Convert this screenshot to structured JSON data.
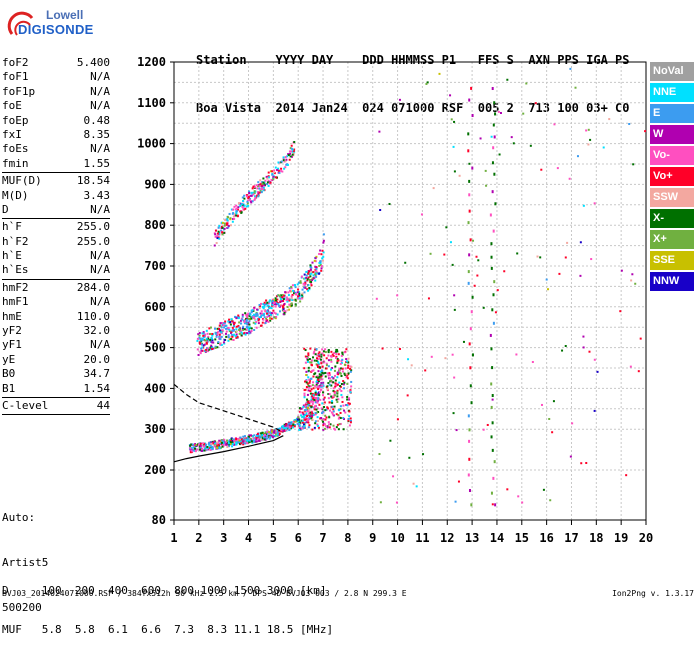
{
  "logo": {
    "line1": "Lowell",
    "line2": "DIGISONDE"
  },
  "header": {
    "row1": "Station    YYYY DAY    DDD HHMMSS P1   FFS S  AXN PPS IGA PS",
    "row2": "Boa Vista  2014 Jan24  024 071000 RSF  005 2  713 100 03+ C0"
  },
  "params_groups": [
    [
      {
        "k": "foF2",
        "v": "5.400"
      },
      {
        "k": "foF1",
        "v": "N/A"
      },
      {
        "k": "foF1p",
        "v": "N/A"
      },
      {
        "k": "foE",
        "v": "N/A"
      },
      {
        "k": "foEp",
        "v": "0.48"
      },
      {
        "k": "fxI",
        "v": "8.35"
      },
      {
        "k": "foEs",
        "v": "N/A"
      },
      {
        "k": "fmin",
        "v": "1.55"
      }
    ],
    [
      {
        "k": "MUF(D)",
        "v": "18.54"
      },
      {
        "k": "M(D)",
        "v": "3.43"
      },
      {
        "k": "D",
        "v": "N/A"
      }
    ],
    [
      {
        "k": "h`F",
        "v": "255.0"
      },
      {
        "k": "h`F2",
        "v": "255.0"
      },
      {
        "k": "h`E",
        "v": "N/A"
      },
      {
        "k": "h`Es",
        "v": "N/A"
      }
    ],
    [
      {
        "k": "hmF2",
        "v": "284.0"
      },
      {
        "k": "hmF1",
        "v": "N/A"
      },
      {
        "k": "hmE",
        "v": "110.0"
      },
      {
        "k": "yF2",
        "v": "32.0"
      },
      {
        "k": "yF1",
        "v": "N/A"
      },
      {
        "k": "yE",
        "v": "20.0"
      },
      {
        "k": "B0",
        "v": "34.7"
      },
      {
        "k": "B1",
        "v": "1.54"
      }
    ],
    [
      {
        "k": "C-level",
        "v": "44"
      }
    ]
  ],
  "auto_block": [
    "Auto:",
    "Artist5",
    "500200"
  ],
  "bottom_table": {
    "row1": "D     100  200  400  600  800 1000 1500 3000 [km]",
    "row2": "MUF   5.8  5.8  6.1  6.6  7.3  8.3 11.1 18.5 [MHz]"
  },
  "footer": {
    "left": "BVJ03_2014024071000.RSF / 384fx512h 50 kHz 2.5 km / DPS-4D BVJ03 003 / 2.8 N 299.3 E",
    "right": "Ion2Png v. 1.3.17"
  },
  "legend": [
    {
      "label": "NoVal",
      "color": "#a0a0a0"
    },
    {
      "label": "NNE",
      "color": "#00e0ff"
    },
    {
      "label": "E",
      "color": "#3c9cf0"
    },
    {
      "label": "W",
      "color": "#b000b0"
    },
    {
      "label": "Vo-",
      "color": "#ff4fc0"
    },
    {
      "label": "Vo+",
      "color": "#ff0028"
    },
    {
      "label": "SSW",
      "color": "#f3a8a0"
    },
    {
      "label": "X-",
      "color": "#007000"
    },
    {
      "label": "X+",
      "color": "#70b040"
    },
    {
      "label": "SSE",
      "color": "#c8c000"
    },
    {
      "label": "NNW",
      "color": "#1800c8"
    }
  ],
  "chart_data": {
    "type": "scatter",
    "xlim": [
      1,
      20
    ],
    "ylim": [
      80,
      1200
    ],
    "x_ticks": [
      1,
      2,
      3,
      4,
      5,
      6,
      7,
      8,
      9,
      10,
      11,
      12,
      13,
      14,
      15,
      16,
      17,
      18,
      19,
      20
    ],
    "y_ticks": [
      80,
      200,
      300,
      400,
      500,
      600,
      700,
      800,
      900,
      1000,
      1100,
      1200
    ],
    "grid": true,
    "traces": [
      {
        "name": "F2 trace (1st hop)",
        "color_key": "mixed",
        "points": [
          [
            1.6,
            255
          ],
          [
            2.0,
            258
          ],
          [
            2.5,
            262
          ],
          [
            3.0,
            268
          ],
          [
            3.5,
            272
          ],
          [
            4.0,
            278
          ],
          [
            4.5,
            284
          ],
          [
            5.0,
            292
          ],
          [
            5.3,
            300
          ],
          [
            5.6,
            310
          ],
          [
            6.0,
            325
          ],
          [
            6.3,
            340
          ],
          [
            6.6,
            370
          ],
          [
            6.8,
            410
          ],
          [
            7.0,
            440
          ]
        ]
      },
      {
        "name": "F2 trace (2nd hop)",
        "color_key": "mixed",
        "points": [
          [
            1.9,
            510
          ],
          [
            2.5,
            525
          ],
          [
            3.0,
            540
          ],
          [
            3.5,
            552
          ],
          [
            4.0,
            565
          ],
          [
            4.5,
            585
          ],
          [
            5.0,
            600
          ],
          [
            5.5,
            615
          ],
          [
            6.0,
            640
          ],
          [
            6.5,
            680
          ],
          [
            6.9,
            720
          ],
          [
            7.0,
            760
          ]
        ]
      },
      {
        "name": "F2 trace (3rd hop)",
        "color_key": "mixed",
        "points": [
          [
            2.6,
            770
          ],
          [
            3.0,
            800
          ],
          [
            3.5,
            840
          ],
          [
            4.0,
            870
          ],
          [
            4.5,
            900
          ],
          [
            5.0,
            930
          ],
          [
            5.5,
            960
          ],
          [
            5.8,
            990
          ]
        ]
      }
    ],
    "profile_solid": [
      [
        1,
        220
      ],
      [
        1.5,
        228
      ],
      [
        2,
        234
      ],
      [
        3,
        245
      ],
      [
        4,
        258
      ],
      [
        5,
        272
      ],
      [
        5.4,
        284
      ]
    ],
    "profile_dashed": [
      [
        1,
        410
      ],
      [
        1.5,
        385
      ],
      [
        2,
        365
      ],
      [
        3,
        345
      ],
      [
        4,
        325
      ],
      [
        5,
        305
      ],
      [
        5.4,
        292
      ]
    ]
  }
}
